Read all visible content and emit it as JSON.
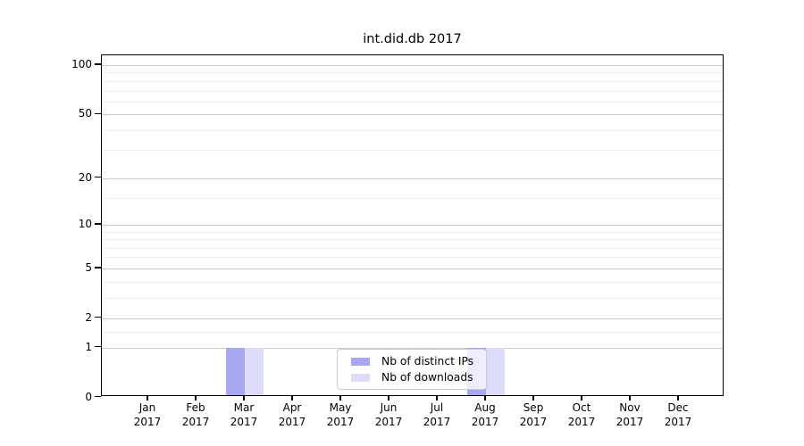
{
  "chart_data": {
    "type": "bar",
    "title": "int.did.db 2017",
    "x_tick_months": [
      "Jan",
      "Feb",
      "Mar",
      "Apr",
      "May",
      "Jun",
      "Jul",
      "Aug",
      "Sep",
      "Oct",
      "Nov",
      "Dec"
    ],
    "x_tick_year": "2017",
    "series": [
      {
        "name": "Nb of distinct IPs",
        "color": "#a7a7f2",
        "values": [
          0,
          0,
          1,
          0,
          0,
          0,
          0,
          1,
          0,
          0,
          0,
          0
        ]
      },
      {
        "name": "Nb of downloads",
        "color": "#dcdcf8",
        "values": [
          0,
          0,
          1,
          0,
          0,
          0,
          0,
          1,
          0,
          0,
          0,
          0
        ]
      }
    ],
    "y_scale": "log1p",
    "ylim": [
      0,
      100
    ],
    "y_major_ticks": [
      0,
      1,
      2,
      5,
      10,
      20,
      50,
      100
    ],
    "y_minor_ticks": [
      1.5,
      3,
      4,
      6,
      7,
      8,
      9,
      15,
      30,
      40,
      60,
      70,
      80,
      90
    ],
    "grid": true,
    "legend_position": "lower-center",
    "colors": {
      "major_grid": "#cbcbcb",
      "minor_grid": "#eeeeee",
      "axis": "#000000",
      "legend_border": "#cbcbcb",
      "background": "#ffffff"
    }
  }
}
